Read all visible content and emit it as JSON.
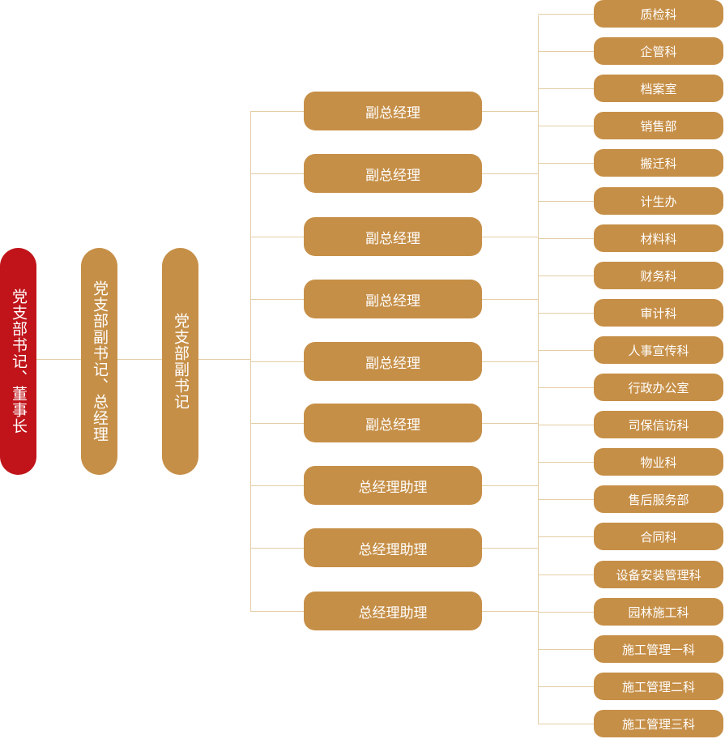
{
  "colors": {
    "primary": "#c0141a",
    "box": "#c68f47",
    "connector": "#e4cda4"
  },
  "level1": {
    "label": "党支部书记、董事长"
  },
  "level2": {
    "label": "党支部副书记、总经理"
  },
  "level3": {
    "label": "党支部副书记"
  },
  "managers": [
    "副总经理",
    "副总经理",
    "副总经理",
    "副总经理",
    "副总经理",
    "副总经理",
    "总经理助理",
    "总经理助理",
    "总经理助理"
  ],
  "departments": [
    "质检科",
    "企管科",
    "档案室",
    "销售部",
    "搬迁科",
    "计生办",
    "材料科",
    "财务科",
    "审计科",
    "人事宣传科",
    "行政办公室",
    "司保信访科",
    "物业科",
    "售后服务部",
    "合同科",
    "设备安装管理科",
    "园林施工科",
    "施工管理一科",
    "施工管理二科",
    "施工管理三科"
  ]
}
